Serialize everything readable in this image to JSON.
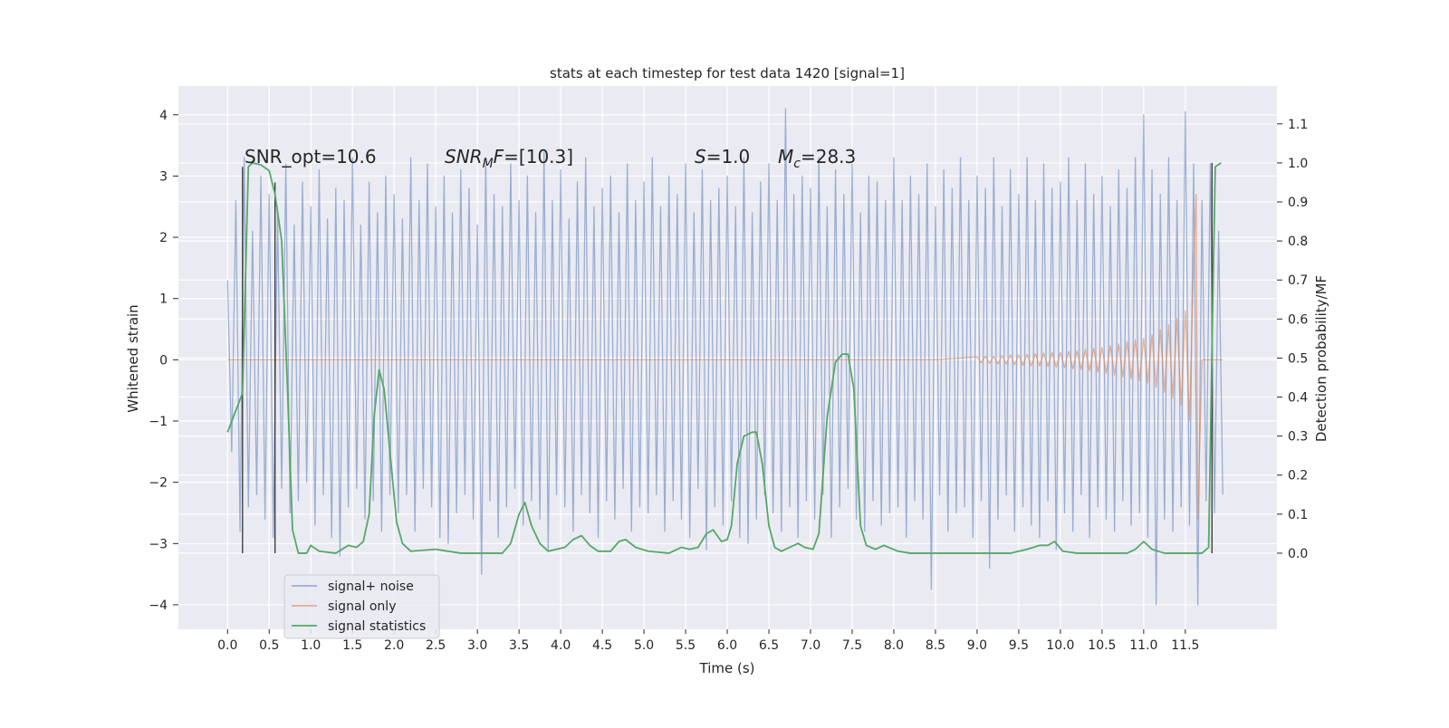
{
  "chart_data": {
    "type": "line",
    "title": "stats at each timestep for test data 1420 [signal=1]",
    "xlabel": "Time (s)",
    "ylabel": "Whitened strain",
    "y2label": "Detection probability/MF",
    "grid": true,
    "legend": "lower left",
    "xlim": [
      -0.59,
      12.6
    ],
    "ylim": [
      -4.4,
      4.47
    ],
    "y2lim": [
      -0.195,
      1.197
    ],
    "xticks": [
      {
        "value": 0,
        "label": "0.0"
      },
      {
        "value": 0.5,
        "label": "0.5"
      },
      {
        "value": 1,
        "label": "1.0"
      },
      {
        "value": 1.5,
        "label": "1.5"
      },
      {
        "value": 2,
        "label": "2.0"
      },
      {
        "value": 2.5,
        "label": "2.5"
      },
      {
        "value": 3,
        "label": "3.0"
      },
      {
        "value": 3.5,
        "label": "3.5"
      },
      {
        "value": 4,
        "label": "4.0"
      },
      {
        "value": 4.5,
        "label": "4.5"
      },
      {
        "value": 5,
        "label": "5.0"
      },
      {
        "value": 5.5,
        "label": "5.5"
      },
      {
        "value": 6,
        "label": "6.0"
      },
      {
        "value": 6.5,
        "label": "6.5"
      },
      {
        "value": 7,
        "label": "7.0"
      },
      {
        "value": 7.5,
        "label": "7.5"
      },
      {
        "value": 8,
        "label": "8.0"
      },
      {
        "value": 8.5,
        "label": "8.5"
      },
      {
        "value": 9,
        "label": "9.0"
      },
      {
        "value": 9.5,
        "label": "9.5"
      },
      {
        "value": 10,
        "label": "10.0"
      },
      {
        "value": 10.5,
        "label": "10.5"
      },
      {
        "value": 11,
        "label": "11.0"
      },
      {
        "value": 11.5,
        "label": "11.5"
      }
    ],
    "yticks": [
      {
        "value": -4,
        "label": "−4"
      },
      {
        "value": -3,
        "label": "−3"
      },
      {
        "value": -2,
        "label": "−2"
      },
      {
        "value": -1,
        "label": "−1"
      },
      0,
      1,
      2,
      3,
      4
    ],
    "y2ticks": [
      {
        "value": 0,
        "label": "0.0"
      },
      {
        "value": 0.1,
        "label": "0.1"
      },
      {
        "value": 0.2,
        "label": "0.2"
      },
      {
        "value": 0.3,
        "label": "0.3"
      },
      {
        "value": 0.4,
        "label": "0.4"
      },
      {
        "value": 0.5,
        "label": "0.5"
      },
      {
        "value": 0.6,
        "label": "0.6"
      },
      {
        "value": 0.7,
        "label": "0.7"
      },
      {
        "value": 0.8,
        "label": "0.8"
      },
      {
        "value": 0.9,
        "label": "0.9"
      },
      {
        "value": 1,
        "label": "1.0"
      },
      {
        "value": 1.1,
        "label": "1.1"
      }
    ],
    "annotations": [
      [
        {
          "text": "SNR_opt=10.6"
        }
      ],
      [
        {
          "text": "SNR",
          "italic": true
        },
        {
          "text": "M",
          "italic": true,
          "sub": true
        },
        {
          "text": "F",
          "italic": true
        },
        {
          "text": "=[10.3]"
        }
      ],
      [
        {
          "text": "S",
          "italic": true
        },
        {
          "text": "=1.0"
        }
      ],
      [
        {
          "text": "M",
          "italic": true
        },
        {
          "text": "c",
          "italic": true,
          "sub": true
        },
        {
          "text": "=28.3"
        }
      ]
    ],
    "vlines": {
      "color": "#333333",
      "x": [
        0.18,
        0.57,
        11.82
      ],
      "y2min": [
        0,
        0,
        0
      ],
      "y2max": [
        0.99,
        0.95,
        1.0
      ]
    },
    "series": [
      {
        "name": "signal+ noise",
        "color": "#4c72b0",
        "opacity": 0.5,
        "x": [
          0,
          0.05,
          0.1,
          0.15,
          0.2,
          0.25,
          0.3,
          0.35,
          0.4,
          0.45,
          0.5,
          0.55,
          0.6,
          0.65,
          0.7,
          0.75,
          0.8,
          0.85,
          0.9,
          0.95,
          1,
          1.05,
          1.1,
          1.15,
          1.2,
          1.25,
          1.3,
          1.35,
          1.4,
          1.45,
          1.5,
          1.55,
          1.6,
          1.65,
          1.7,
          1.75,
          1.8,
          1.85,
          1.9,
          1.95,
          2,
          2.05,
          2.1,
          2.15,
          2.2,
          2.25,
          2.3,
          2.35,
          2.4,
          2.45,
          2.5,
          2.55,
          2.6,
          2.65,
          2.7,
          2.75,
          2.8,
          2.85,
          2.9,
          2.95,
          3,
          3.05,
          3.1,
          3.15,
          3.2,
          3.25,
          3.3,
          3.35,
          3.4,
          3.45,
          3.5,
          3.55,
          3.6,
          3.65,
          3.7,
          3.75,
          3.8,
          3.85,
          3.9,
          3.95,
          4,
          4.05,
          4.1,
          4.15,
          4.2,
          4.25,
          4.3,
          4.35,
          4.4,
          4.45,
          4.5,
          4.55,
          4.6,
          4.65,
          4.7,
          4.75,
          4.8,
          4.85,
          4.9,
          4.95,
          5,
          5.05,
          5.1,
          5.15,
          5.2,
          5.25,
          5.3,
          5.35,
          5.4,
          5.45,
          5.5,
          5.55,
          5.6,
          5.65,
          5.7,
          5.75,
          5.8,
          5.85,
          5.9,
          5.95,
          6,
          6.05,
          6.1,
          6.15,
          6.2,
          6.25,
          6.3,
          6.35,
          6.4,
          6.45,
          6.5,
          6.55,
          6.6,
          6.65,
          6.7,
          6.75,
          6.8,
          6.85,
          6.9,
          6.95,
          7,
          7.05,
          7.1,
          7.15,
          7.2,
          7.25,
          7.3,
          7.35,
          7.4,
          7.45,
          7.5,
          7.55,
          7.6,
          7.65,
          7.7,
          7.75,
          7.8,
          7.85,
          7.9,
          7.95,
          8,
          8.05,
          8.1,
          8.15,
          8.2,
          8.25,
          8.3,
          8.35,
          8.4,
          8.45,
          8.5,
          8.55,
          8.6,
          8.65,
          8.7,
          8.75,
          8.8,
          8.85,
          8.9,
          8.95,
          9,
          9.05,
          9.1,
          9.15,
          9.2,
          9.25,
          9.3,
          9.35,
          9.4,
          9.45,
          9.5,
          9.55,
          9.6,
          9.65,
          9.7,
          9.75,
          9.8,
          9.85,
          9.9,
          9.95,
          10,
          10.05,
          10.1,
          10.15,
          10.2,
          10.25,
          10.3,
          10.35,
          10.4,
          10.45,
          10.5,
          10.55,
          10.6,
          10.65,
          10.7,
          10.75,
          10.8,
          10.85,
          10.9,
          10.95,
          11,
          11.05,
          11.1,
          11.15,
          11.2,
          11.25,
          11.3,
          11.35,
          11.4,
          11.45,
          11.5,
          11.55,
          11.6,
          11.65,
          11.7,
          11.75,
          11.8,
          11.85,
          11.9,
          11.95
        ],
        "values": [
          1.3,
          -1.5,
          2.6,
          -2.8,
          3.3,
          -2.4,
          2.1,
          -2.2,
          3.0,
          -2.6,
          2.7,
          -2.9,
          2.4,
          -2.1,
          3.2,
          -2.5,
          2.2,
          -2.3,
          2.9,
          -2.0,
          2.5,
          -2.7,
          3.1,
          -2.2,
          2.3,
          -2.9,
          2.8,
          -3.2,
          2.6,
          -2.4,
          3.3,
          -2.1,
          2.2,
          -2.6,
          2.9,
          -2.3,
          2.4,
          -2.8,
          3.0,
          -2.2,
          2.7,
          -2.5,
          2.3,
          -2.2,
          3.3,
          -2.8,
          2.6,
          -2.1,
          3.2,
          -2.4,
          2.5,
          -2.9,
          3.0,
          -3.0,
          2.4,
          -2.5,
          3.1,
          -2.2,
          2.8,
          -2.6,
          2.2,
          -3.5,
          3.3,
          -2.3,
          2.7,
          -2.9,
          2.5,
          -2.4,
          3.2,
          -2.1,
          2.6,
          -2.7,
          3.0,
          -2.3,
          2.4,
          -2.6,
          3.4,
          -3.1,
          2.6,
          -2.2,
          3.1,
          -2.4,
          2.3,
          -2.8,
          2.9,
          -2.2,
          3.3,
          -2.5,
          2.5,
          -2.9,
          2.8,
          -2.3,
          3.0,
          -2.6,
          2.4,
          -2.1,
          3.2,
          -2.8,
          2.6,
          -2.4,
          2.9,
          -2.5,
          3.3,
          -2.2,
          2.5,
          -2.8,
          3.0,
          -2.3,
          2.7,
          -2.6,
          3.2,
          -2.9,
          2.4,
          -2.1,
          3.1,
          -3.1,
          2.6,
          -2.4,
          2.8,
          -2.7,
          3.0,
          -2.3,
          2.5,
          -2.9,
          3.3,
          -3.0,
          2.4,
          -2.6,
          2.9,
          -2.2,
          3.2,
          -2.5,
          2.6,
          -2.8,
          4.1,
          -2.4,
          2.7,
          -2.9,
          3.0,
          -2.3,
          2.8,
          -2.6,
          3.3,
          -2.2,
          2.5,
          -2.9,
          3.1,
          -2.4,
          2.7,
          -2.1,
          3.2,
          -2.6,
          2.4,
          -2.8,
          3.0,
          -2.3,
          2.9,
          -2.7,
          2.6,
          -2.5,
          3.3,
          -2.4,
          2.6,
          -2.9,
          3.0,
          -2.3,
          2.7,
          -2.6,
          3.2,
          -3.75,
          2.5,
          -2.2,
          3.1,
          -2.8,
          2.8,
          -2.5,
          3.3,
          -2.4,
          2.6,
          -2.9,
          3.0,
          -2.3,
          2.8,
          -3.4,
          3.3,
          -2.6,
          2.5,
          -2.2,
          3.1,
          -2.8,
          2.7,
          -2.4,
          3.3,
          -2.7,
          2.6,
          -2.9,
          3.2,
          -2.3,
          2.8,
          -3.1,
          2.9,
          -2.5,
          3.3,
          -2.8,
          2.6,
          -2.2,
          3.2,
          -2.9,
          2.7,
          -2.4,
          3.0,
          -2.6,
          2.5,
          -2.8,
          3.1,
          -2.3,
          2.8,
          -2.7,
          3.3,
          -2.5,
          4.0,
          -2.9,
          3.1,
          -4.0,
          2.7,
          -2.6,
          3.3,
          -2.8,
          2.6,
          -2.4,
          4.05,
          -2.7,
          3.2,
          -4.0,
          2.6,
          -2.3,
          3.2,
          -2.5,
          2.1,
          -2.2
        ]
      },
      {
        "name": "signal only",
        "color": "#dd8452",
        "opacity": 0.6,
        "x": [
          0,
          8.5,
          9,
          9.05,
          9.1,
          9.15,
          9.2,
          9.25,
          9.3,
          9.35,
          9.4,
          9.45,
          9.5,
          9.55,
          9.6,
          9.65,
          9.7,
          9.75,
          9.8,
          9.85,
          9.9,
          9.95,
          10,
          10.05,
          10.1,
          10.15,
          10.2,
          10.25,
          10.3,
          10.35,
          10.4,
          10.45,
          10.5,
          10.55,
          10.6,
          10.65,
          10.7,
          10.75,
          10.8,
          10.85,
          10.9,
          10.95,
          11,
          11.05,
          11.1,
          11.15,
          11.2,
          11.25,
          11.3,
          11.35,
          11.4,
          11.45,
          11.5,
          11.55,
          11.6,
          11.63,
          11.65,
          11.7,
          11.95
        ],
        "values": [
          0,
          0,
          0.05,
          -0.05,
          0.06,
          -0.06,
          0.06,
          -0.07,
          0.07,
          -0.07,
          0.08,
          -0.08,
          0.08,
          -0.09,
          0.09,
          -0.1,
          0.1,
          -0.1,
          0.11,
          -0.11,
          0.12,
          -0.12,
          0.12,
          -0.13,
          0.14,
          -0.15,
          0.15,
          -0.16,
          0.17,
          -0.18,
          0.19,
          -0.2,
          0.2,
          -0.22,
          0.23,
          -0.25,
          0.26,
          -0.28,
          0.3,
          -0.31,
          0.33,
          -0.34,
          0.35,
          -0.38,
          0.41,
          -0.45,
          0.49,
          -0.53,
          0.57,
          -0.62,
          0.68,
          -0.74,
          0.8,
          -1.0,
          1.6,
          2.7,
          -2.6,
          0,
          0
        ]
      },
      {
        "name": "signal statistics",
        "color": "#55a868",
        "axis": "y2",
        "x": [
          0,
          0.18,
          0.25,
          0.3,
          0.4,
          0.5,
          0.57,
          0.65,
          0.72,
          0.78,
          0.85,
          0.95,
          1,
          1.1,
          1.3,
          1.45,
          1.55,
          1.63,
          1.7,
          1.76,
          1.82,
          1.88,
          1.95,
          2.03,
          2.1,
          2.2,
          2.5,
          2.8,
          3.3,
          3.4,
          3.5,
          3.57,
          3.65,
          3.75,
          3.85,
          4.05,
          4.15,
          4.25,
          4.35,
          4.45,
          4.6,
          4.7,
          4.78,
          4.9,
          5.05,
          5.3,
          5.45,
          5.55,
          5.65,
          5.75,
          5.83,
          5.93,
          6,
          6.05,
          6.12,
          6.2,
          6.3,
          6.35,
          6.42,
          6.5,
          6.57,
          6.65,
          6.75,
          6.85,
          6.93,
          7.03,
          7.1,
          7.2,
          7.3,
          7.38,
          7.45,
          7.52,
          7.6,
          7.67,
          7.78,
          7.88,
          8.05,
          8.2,
          9,
          9.4,
          9.6,
          9.75,
          9.85,
          9.93,
          10.03,
          10.2,
          10.8,
          10.9,
          11,
          11.1,
          11.25,
          11.7,
          11.78,
          11.83,
          11.86,
          11.93
        ],
        "values": [
          0.31,
          0.41,
          0.99,
          1.0,
          0.995,
          0.98,
          0.92,
          0.8,
          0.42,
          0.06,
          0,
          0,
          0.02,
          0.005,
          0,
          0.02,
          0.015,
          0.03,
          0.1,
          0.35,
          0.47,
          0.42,
          0.26,
          0.08,
          0.025,
          0.005,
          0.01,
          0,
          0,
          0.025,
          0.1,
          0.13,
          0.07,
          0.025,
          0.005,
          0.015,
          0.035,
          0.045,
          0.02,
          0.005,
          0.005,
          0.03,
          0.035,
          0.015,
          0.005,
          0,
          0.015,
          0.01,
          0.015,
          0.05,
          0.06,
          0.03,
          0.035,
          0.07,
          0.23,
          0.3,
          0.31,
          0.31,
          0.23,
          0.07,
          0.015,
          0.005,
          0.015,
          0.025,
          0.015,
          0.01,
          0.05,
          0.35,
          0.49,
          0.51,
          0.51,
          0.42,
          0.07,
          0.02,
          0.01,
          0.02,
          0.005,
          0,
          0,
          0,
          0.01,
          0.02,
          0.02,
          0.03,
          0.005,
          0,
          0,
          0.01,
          0.03,
          0.01,
          0,
          0,
          0.015,
          0.65,
          0.99,
          1.0
        ]
      }
    ]
  }
}
